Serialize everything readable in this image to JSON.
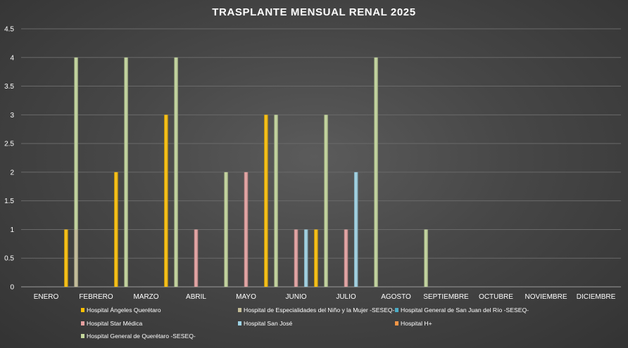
{
  "chart_data": {
    "type": "bar",
    "title": "TRASPLANTE MENSUAL RENAL 2025",
    "xlabel": "",
    "ylabel": "",
    "ylim": [
      0,
      4.5
    ],
    "ytick_step": 0.5,
    "y_ticks": [
      "0",
      "0.5",
      "1",
      "1.5",
      "2",
      "2.5",
      "3",
      "3.5",
      "4",
      "4.5"
    ],
    "grid": true,
    "legend_position": "bottom",
    "categories": [
      "ENERO",
      "FEBRERO",
      "MARZO",
      "ABRIL",
      "MAYO",
      "JUNIO",
      "JULIO",
      "AGOSTO",
      "SEPTIEMBRE",
      "OCTUBRE",
      "NOVIEMBRE",
      "DICIEMBRE"
    ],
    "series": [
      {
        "name": "Hospital Ángeles Querétaro",
        "color": "#ffc000",
        "values": [
          0,
          1,
          2,
          3,
          0,
          3,
          1,
          0,
          0,
          0,
          0,
          0
        ]
      },
      {
        "name": "Hospital de Especialidades del Niño y la Mujer -SESEQ-",
        "color": "#c4bd97",
        "values": [
          0,
          1,
          0,
          0,
          0,
          0,
          0,
          0,
          0,
          0,
          0,
          0
        ]
      },
      {
        "name": "Hospital General de San Juan del Río -SESEQ-",
        "color": "#4bacc6",
        "values": [
          0,
          0,
          0,
          0,
          0,
          0,
          0,
          0,
          0,
          0,
          0,
          0
        ]
      },
      {
        "name": "Hospital Star Médica",
        "color": "#e6a0a0",
        "values": [
          0,
          0,
          0,
          1,
          2,
          1,
          1,
          0,
          0,
          0,
          0,
          0
        ]
      },
      {
        "name": "Hospital San José",
        "color": "#9dd3e6",
        "values": [
          0,
          0,
          0,
          0,
          0,
          1,
          2,
          0,
          0,
          0,
          0,
          0
        ]
      },
      {
        "name": "Hospital H+",
        "color": "#f79646",
        "values": [
          0,
          0,
          0,
          0,
          0,
          0,
          0,
          0,
          0,
          0,
          0,
          0
        ]
      },
      {
        "name": "Hospital General de Querétaro -SESEQ-",
        "color": "#c3d69b",
        "values": [
          4,
          4,
          4,
          2,
          3,
          3,
          4,
          1,
          0,
          0,
          0,
          0
        ]
      }
    ]
  }
}
